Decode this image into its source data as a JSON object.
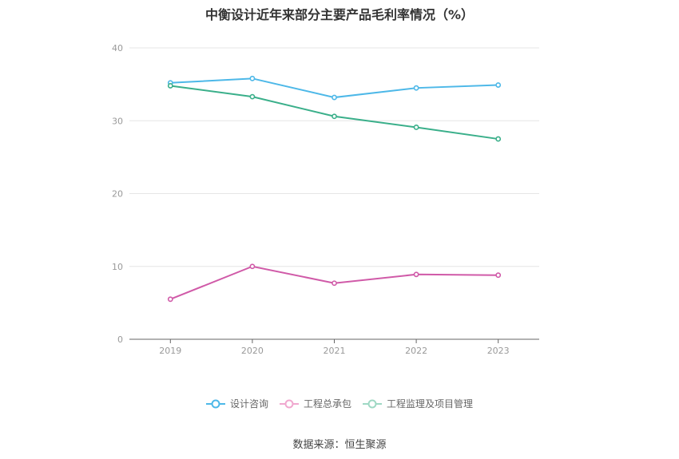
{
  "chart_data": {
    "type": "line",
    "title": "中衡设计近年来部分主要产品毛利率情况（%）",
    "categories": [
      "2019",
      "2020",
      "2021",
      "2022",
      "2023"
    ],
    "ylim": [
      0,
      40
    ],
    "yticks": [
      0,
      10,
      20,
      30,
      40
    ],
    "grid": true,
    "legend_position": "bottom",
    "series": [
      {
        "name": "设计咨询",
        "color": "#4db8e8",
        "values": [
          35.2,
          35.8,
          33.2,
          34.5,
          34.9
        ]
      },
      {
        "name": "工程总承包",
        "color": "#d05aa8",
        "values": [
          5.5,
          10.0,
          7.7,
          8.9,
          8.8
        ]
      },
      {
        "name": "工程监理及项目管理",
        "color": "#3aaf8a",
        "values": [
          34.8,
          33.3,
          30.6,
          29.1,
          27.5
        ]
      }
    ],
    "legend_colors": [
      "#4db8e8",
      "#f0a8cf",
      "#9fd8c4"
    ],
    "source": "数据来源：恒生聚源"
  }
}
